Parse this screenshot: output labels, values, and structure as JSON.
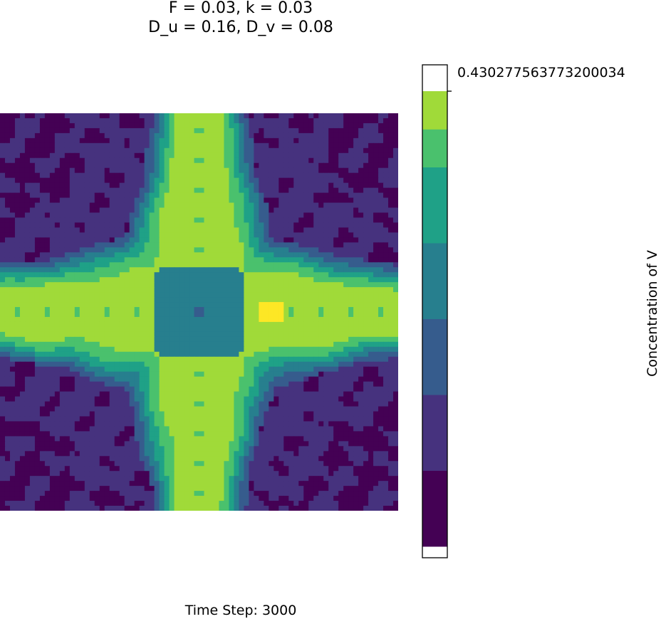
{
  "title_line1": "F = 0.03, k = 0.03",
  "title_line2": "D_u = 0.16, D_v = 0.08",
  "caption": "Time Step: 3000",
  "colorbar": {
    "label": "Concentration of V",
    "tick_label": "0.430277563773200034",
    "levels": [
      "#440154",
      "#46327e",
      "#365c8d",
      "#277f8e",
      "#1fa187",
      "#4ac16d",
      "#a0da39",
      "#fde725"
    ],
    "band_units": [
      2,
      2,
      4,
      4,
      4,
      4,
      4
    ]
  },
  "chart_data": {
    "type": "heatmap",
    "title": "F = 0.03, k = 0.03\nD_u = 0.16, D_v = 0.08",
    "xlabel": "",
    "ylabel": "",
    "caption": "Time Step: 3000",
    "grid": false,
    "legend": "colorbar-right",
    "colorbar_label": "Concentration of V",
    "colorbar_tick": 0.4302775637732,
    "colormap": "viridis",
    "pattern": "cross-shaped pattern of high V concentration centered in the domain, with a lower-concentration square core, thin bright horizontal and vertical lines along the centre, and low-concentration patches near the corners and edges"
  }
}
